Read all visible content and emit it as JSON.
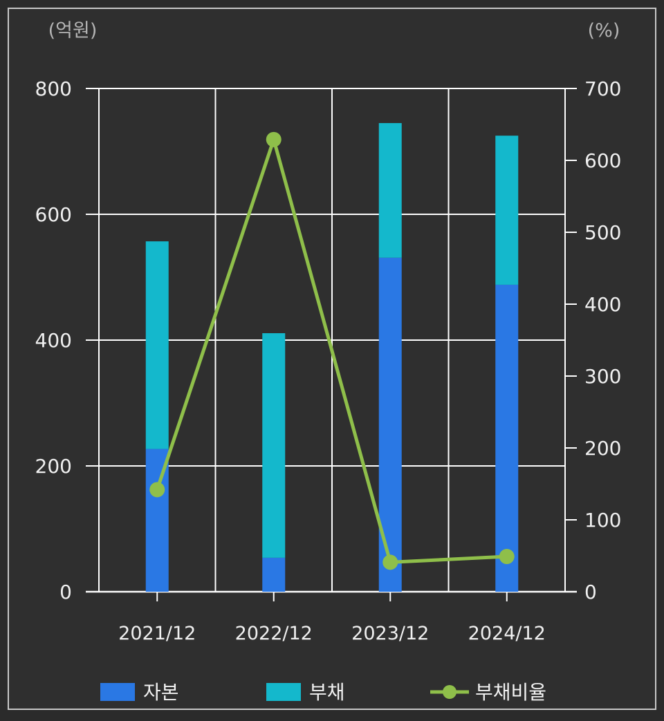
{
  "chart_data": {
    "type": "bar",
    "stacked": true,
    "categories": [
      "2021/12",
      "2022/12",
      "2023/12",
      "2024/12"
    ],
    "unit_left": "(억원)",
    "unit_right": "(%)",
    "y_left": {
      "lim": [
        0,
        800
      ],
      "ticks": [
        "0",
        "200",
        "400",
        "600",
        "800"
      ]
    },
    "y_right": {
      "lim": [
        0,
        700
      ],
      "ticks": [
        "0",
        "100",
        "200",
        "300",
        "400",
        "500",
        "600",
        "700"
      ]
    },
    "series": [
      {
        "name": "자본",
        "type": "bar",
        "axis": "left",
        "color": "#2a78e4",
        "values": [
          227,
          54,
          531,
          488
        ]
      },
      {
        "name": "부채",
        "type": "bar",
        "axis": "left",
        "color": "#14b8cc",
        "values": [
          330,
          357,
          214,
          237
        ]
      },
      {
        "name": "부채비율",
        "type": "line",
        "axis": "right",
        "color": "#8fbf4a",
        "values": [
          142,
          629,
          41,
          49
        ]
      }
    ],
    "grid": true,
    "legend_position": "bottom"
  }
}
